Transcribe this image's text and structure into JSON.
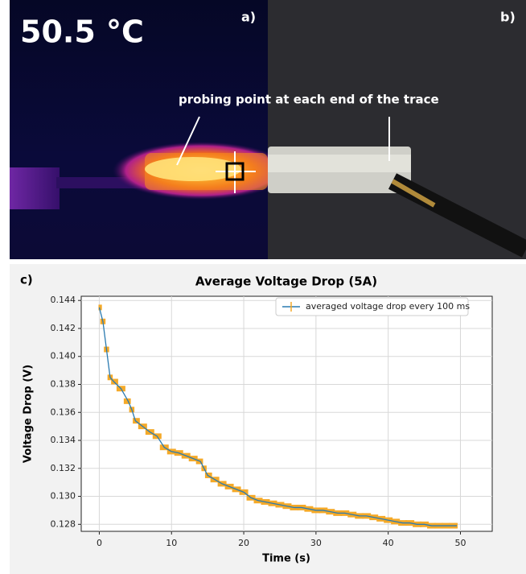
{
  "panels": {
    "temperature": "50.5 °C",
    "label_a": "a)",
    "label_b": "b)",
    "annotation": "probing point at each end of the trace",
    "label_c": "c)"
  },
  "chart_data": {
    "type": "line",
    "title": "Average Voltage Drop (5A)",
    "x_label": "Time (s)",
    "y_label": "Voltage Drop (V)",
    "xlim": [
      -2.5,
      54.4
    ],
    "ylim": [
      0.1275,
      0.1443
    ],
    "xticks": [
      0,
      10,
      20,
      30,
      40,
      50
    ],
    "yticks": [
      0.128,
      {
        "value": 0.13,
        "label": "0.130"
      },
      0.132,
      0.134,
      0.136,
      0.138,
      {
        "value": 0.14,
        "label": "0.140"
      },
      0.142,
      0.144
    ],
    "grid": true,
    "legend": "upper right",
    "x": [
      0,
      0.5,
      1,
      1.5,
      2,
      3,
      4,
      4.5,
      5,
      6,
      7,
      8,
      9,
      10,
      11,
      12,
      13,
      14,
      14.5,
      15,
      16,
      17,
      18,
      19,
      20,
      21,
      22,
      23,
      24,
      25,
      26,
      27,
      28,
      29,
      30,
      31,
      32,
      33,
      34,
      35,
      36,
      37,
      38,
      39,
      40,
      41,
      42,
      43,
      44,
      45,
      46,
      47,
      48,
      49,
      49.5
    ],
    "series": [
      {
        "name": "averaged voltage drop every 100 ms",
        "color": "#2a7ab0",
        "error_color": "#f4a928",
        "values": [
          0.1435,
          0.1425,
          0.1405,
          0.1385,
          0.1382,
          0.1377,
          0.1368,
          0.1362,
          0.1354,
          0.135,
          0.1346,
          0.1343,
          0.1335,
          0.1332,
          0.1331,
          0.1329,
          0.1327,
          0.1325,
          0.132,
          0.1315,
          0.1312,
          0.1309,
          0.1307,
          0.1305,
          0.1303,
          0.1299,
          0.1297,
          0.1296,
          0.1295,
          0.1294,
          0.1293,
          0.1292,
          0.1292,
          0.1291,
          0.129,
          0.129,
          0.1289,
          0.1288,
          0.1288,
          0.1287,
          0.1286,
          0.1286,
          0.1285,
          0.1284,
          0.1283,
          0.1282,
          0.1281,
          0.1281,
          0.128,
          0.128,
          0.1279,
          0.1279,
          0.1279,
          0.1279,
          0.1279
        ],
        "errors": [
          0.0002,
          0.0002,
          0.0002,
          0.0002,
          0.0002,
          0.0002,
          0.0002,
          0.0002,
          0.0002,
          0.0002,
          0.0002,
          0.0002,
          0.0002,
          0.0002,
          0.0002,
          0.0002,
          0.0002,
          0.0002,
          0.0002,
          0.0002,
          0.0002,
          0.0002,
          0.0002,
          0.0002,
          0.0002,
          0.0002,
          0.0002,
          0.0002,
          0.0002,
          0.0002,
          0.0002,
          0.0002,
          0.0002,
          0.0002,
          0.0002,
          0.0002,
          0.0002,
          0.0002,
          0.0002,
          0.0002,
          0.0002,
          0.0002,
          0.0002,
          0.0002,
          0.0002,
          0.0002,
          0.0002,
          0.0002,
          0.0002,
          0.0002,
          0.0002,
          0.0002,
          0.0002,
          0.0002,
          0.0002
        ]
      }
    ]
  }
}
